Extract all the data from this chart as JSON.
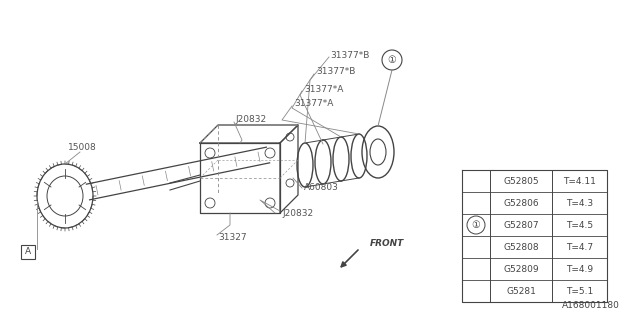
{
  "bg_color": "#ffffff",
  "line_color": "#888888",
  "dark_color": "#444444",
  "text_color": "#555555",
  "table": {
    "parts": [
      "G52805",
      "G52806",
      "G52807",
      "G52808",
      "G52809",
      "G5281"
    ],
    "values": [
      "T=4.11",
      "T=4.3",
      "T=4.5",
      "T=4.7",
      "T=4.9",
      "T=5.1"
    ],
    "circle_row": 2
  },
  "footnote": "A168001180"
}
